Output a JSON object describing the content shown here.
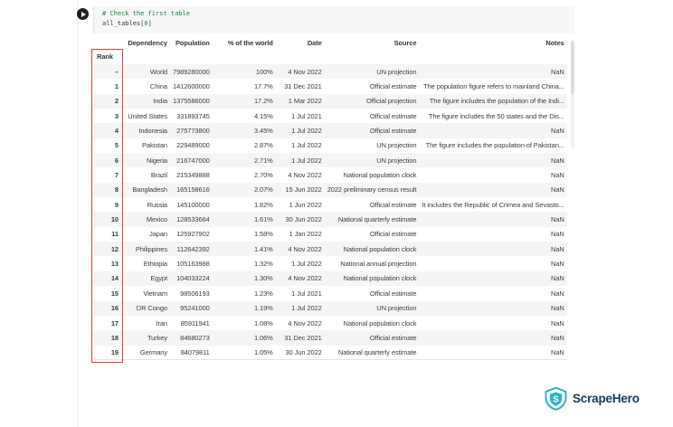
{
  "notebook": {
    "code": {
      "comment": "# Check the first table",
      "expr_pre": "all_tables[",
      "expr_num": "0",
      "expr_post": "]"
    }
  },
  "table": {
    "index_name": "Rank",
    "columns": [
      "Dependency",
      "Population",
      "% of the world",
      "Date",
      "Source",
      "Notes"
    ],
    "rows": [
      [
        "–",
        "World",
        "7989280000",
        "100%",
        "4 Nov 2022",
        "UN projection",
        "NaN"
      ],
      [
        "1",
        "China",
        "1412600000",
        "17.7%",
        "31 Dec 2021",
        "Official estimate",
        "The population figure refers to mainland China..."
      ],
      [
        "2",
        "India",
        "1375586000",
        "17.2%",
        "1 Mar 2022",
        "Official projection",
        "The figure includes the population of the Indi..."
      ],
      [
        "3",
        "United States",
        "331893745",
        "4.15%",
        "1 Jul 2021",
        "Official estimate",
        "The figure includes the 50 states and the Dis..."
      ],
      [
        "4",
        "Indonesia",
        "275773800",
        "3.45%",
        "1 Jul 2022",
        "Official estimate",
        "NaN"
      ],
      [
        "5",
        "Pakistan",
        "229489000",
        "2.87%",
        "1 Jul 2022",
        "UN projection",
        "The figure includes the population of Pakistan..."
      ],
      [
        "6",
        "Nigeria",
        "216747000",
        "2.71%",
        "1 Jul 2022",
        "UN projection",
        "NaN"
      ],
      [
        "7",
        "Brazil",
        "215349888",
        "2.70%",
        "4 Nov 2022",
        "National population clock",
        "NaN"
      ],
      [
        "8",
        "Bangladesh",
        "165158616",
        "2.07%",
        "15 Jun 2022",
        "2022 preliminary census result",
        "NaN"
      ],
      [
        "9",
        "Russia",
        "145100000",
        "1.82%",
        "1 Jun 2022",
        "Official estimate",
        "It includes the Republic of Crimea and Sevasto..."
      ],
      [
        "10",
        "Mexico",
        "128533664",
        "1.61%",
        "30 Jun 2022",
        "National quarterly estimate",
        "NaN"
      ],
      [
        "11",
        "Japan",
        "125927902",
        "1.58%",
        "1 Jan 2022",
        "Official estimate",
        "NaN"
      ],
      [
        "12",
        "Philippines",
        "112642392",
        "1.41%",
        "4 Nov 2022",
        "National population clock",
        "NaN"
      ],
      [
        "13",
        "Ethiopia",
        "105163988",
        "1.32%",
        "1 Jul 2022",
        "National annual projection",
        "NaN"
      ],
      [
        "14",
        "Egypt",
        "104033224",
        "1.30%",
        "4 Nov 2022",
        "National population clock",
        "NaN"
      ],
      [
        "15",
        "Vietnam",
        "98506193",
        "1.23%",
        "1 Jul 2021",
        "Official estimate",
        "NaN"
      ],
      [
        "16",
        "DR Congo",
        "95241000",
        "1.19%",
        "1 Jul 2022",
        "UN projection",
        "NaN"
      ],
      [
        "17",
        "Iran",
        "85911941",
        "1.08%",
        "4 Nov 2022",
        "National population clock",
        "NaN"
      ],
      [
        "18",
        "Turkey",
        "84680273",
        "1.06%",
        "31 Dec 2021",
        "Official estimate",
        "NaN"
      ],
      [
        "19",
        "Germany",
        "84079811",
        "1.05%",
        "30 Jun 2022",
        "National quarterly estimate",
        "NaN"
      ]
    ]
  },
  "annotation": {
    "highlighted_column": "Rank",
    "highlight_color": "#e04038"
  },
  "branding": {
    "name": "ScrapeHero"
  },
  "colors": {
    "comment_green": "#1e8044",
    "code_bg": "#f7f7f7",
    "row_stripe": "#f5f5f5",
    "brand_teal": "#2fb3c7",
    "brand_navy": "#173a5c"
  }
}
